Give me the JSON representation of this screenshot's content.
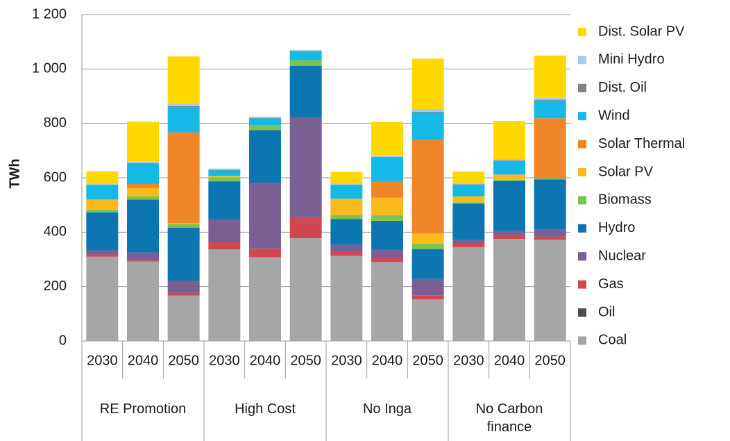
{
  "chart_data": {
    "type": "stacked-bar",
    "y_label": "TWh",
    "categories": [
      "2030",
      "2040",
      "2050",
      "2030",
      "2040",
      "2050",
      "2030",
      "2040",
      "2050",
      "2030",
      "2040",
      "2050"
    ],
    "groups": [
      "RE Promotion",
      "High Cost",
      "No Inga",
      "No Carbon finance"
    ],
    "ylim": [
      0,
      1200
    ],
    "yticks": [
      0,
      200,
      400,
      600,
      800,
      {
        "value": 1000,
        "label": "1 000"
      },
      {
        "value": 1200,
        "label": "1 200"
      }
    ],
    "grid": true,
    "legend": "right",
    "series": [
      {
        "name": "Coal",
        "color": "#a6a6a8",
        "values": [
          310,
          292,
          167,
          337,
          308,
          378,
          313,
          290,
          153,
          345,
          375,
          372
        ]
      },
      {
        "name": "Oil",
        "color": "#4d4d4f",
        "values": [
          0,
          0,
          0,
          0,
          0,
          0,
          0,
          0,
          0,
          0,
          0,
          0
        ]
      },
      {
        "name": "Gas",
        "color": "#d0484f",
        "values": [
          8,
          5,
          10,
          27,
          32,
          77,
          15,
          15,
          15,
          15,
          12,
          12
        ]
      },
      {
        "name": "Nuclear",
        "color": "#7a5f94",
        "values": [
          15,
          28,
          45,
          83,
          242,
          365,
          25,
          32,
          60,
          12,
          17,
          25
        ]
      },
      {
        "name": "Hydro",
        "color": "#0b76b0",
        "values": [
          140,
          195,
          195,
          140,
          193,
          192,
          95,
          105,
          110,
          133,
          185,
          185
        ]
      },
      {
        "name": "Biomass",
        "color": "#7ec252",
        "values": [
          10,
          12,
          12,
          15,
          18,
          20,
          15,
          20,
          20,
          5,
          3,
          5
        ]
      },
      {
        "name": "Solar PV",
        "color": "#fbb91b",
        "values": [
          37,
          30,
          5,
          5,
          0,
          0,
          60,
          65,
          37,
          22,
          20,
          0
        ]
      },
      {
        "name": "Solar Thermal",
        "color": "#f0862a",
        "values": [
          0,
          15,
          333,
          0,
          0,
          0,
          0,
          58,
          345,
          0,
          0,
          220
        ]
      },
      {
        "name": "Wind",
        "color": "#14b9e7",
        "values": [
          52,
          75,
          93,
          20,
          25,
          30,
          50,
          90,
          100,
          42,
          50,
          65
        ]
      },
      {
        "name": "Dist. Oil",
        "color": "#838383",
        "values": [
          2,
          2,
          3,
          2,
          2,
          3,
          2,
          2,
          3,
          2,
          2,
          3
        ]
      },
      {
        "name": "Mini Hydro",
        "color": "#a5cde8",
        "values": [
          5,
          5,
          8,
          5,
          5,
          5,
          5,
          5,
          10,
          5,
          5,
          7
        ]
      },
      {
        "name": "Dist. Solar PV",
        "color": "#ffd800",
        "values": [
          45,
          147,
          175,
          0,
          0,
          0,
          42,
          123,
          185,
          42,
          140,
          155
        ]
      }
    ]
  }
}
